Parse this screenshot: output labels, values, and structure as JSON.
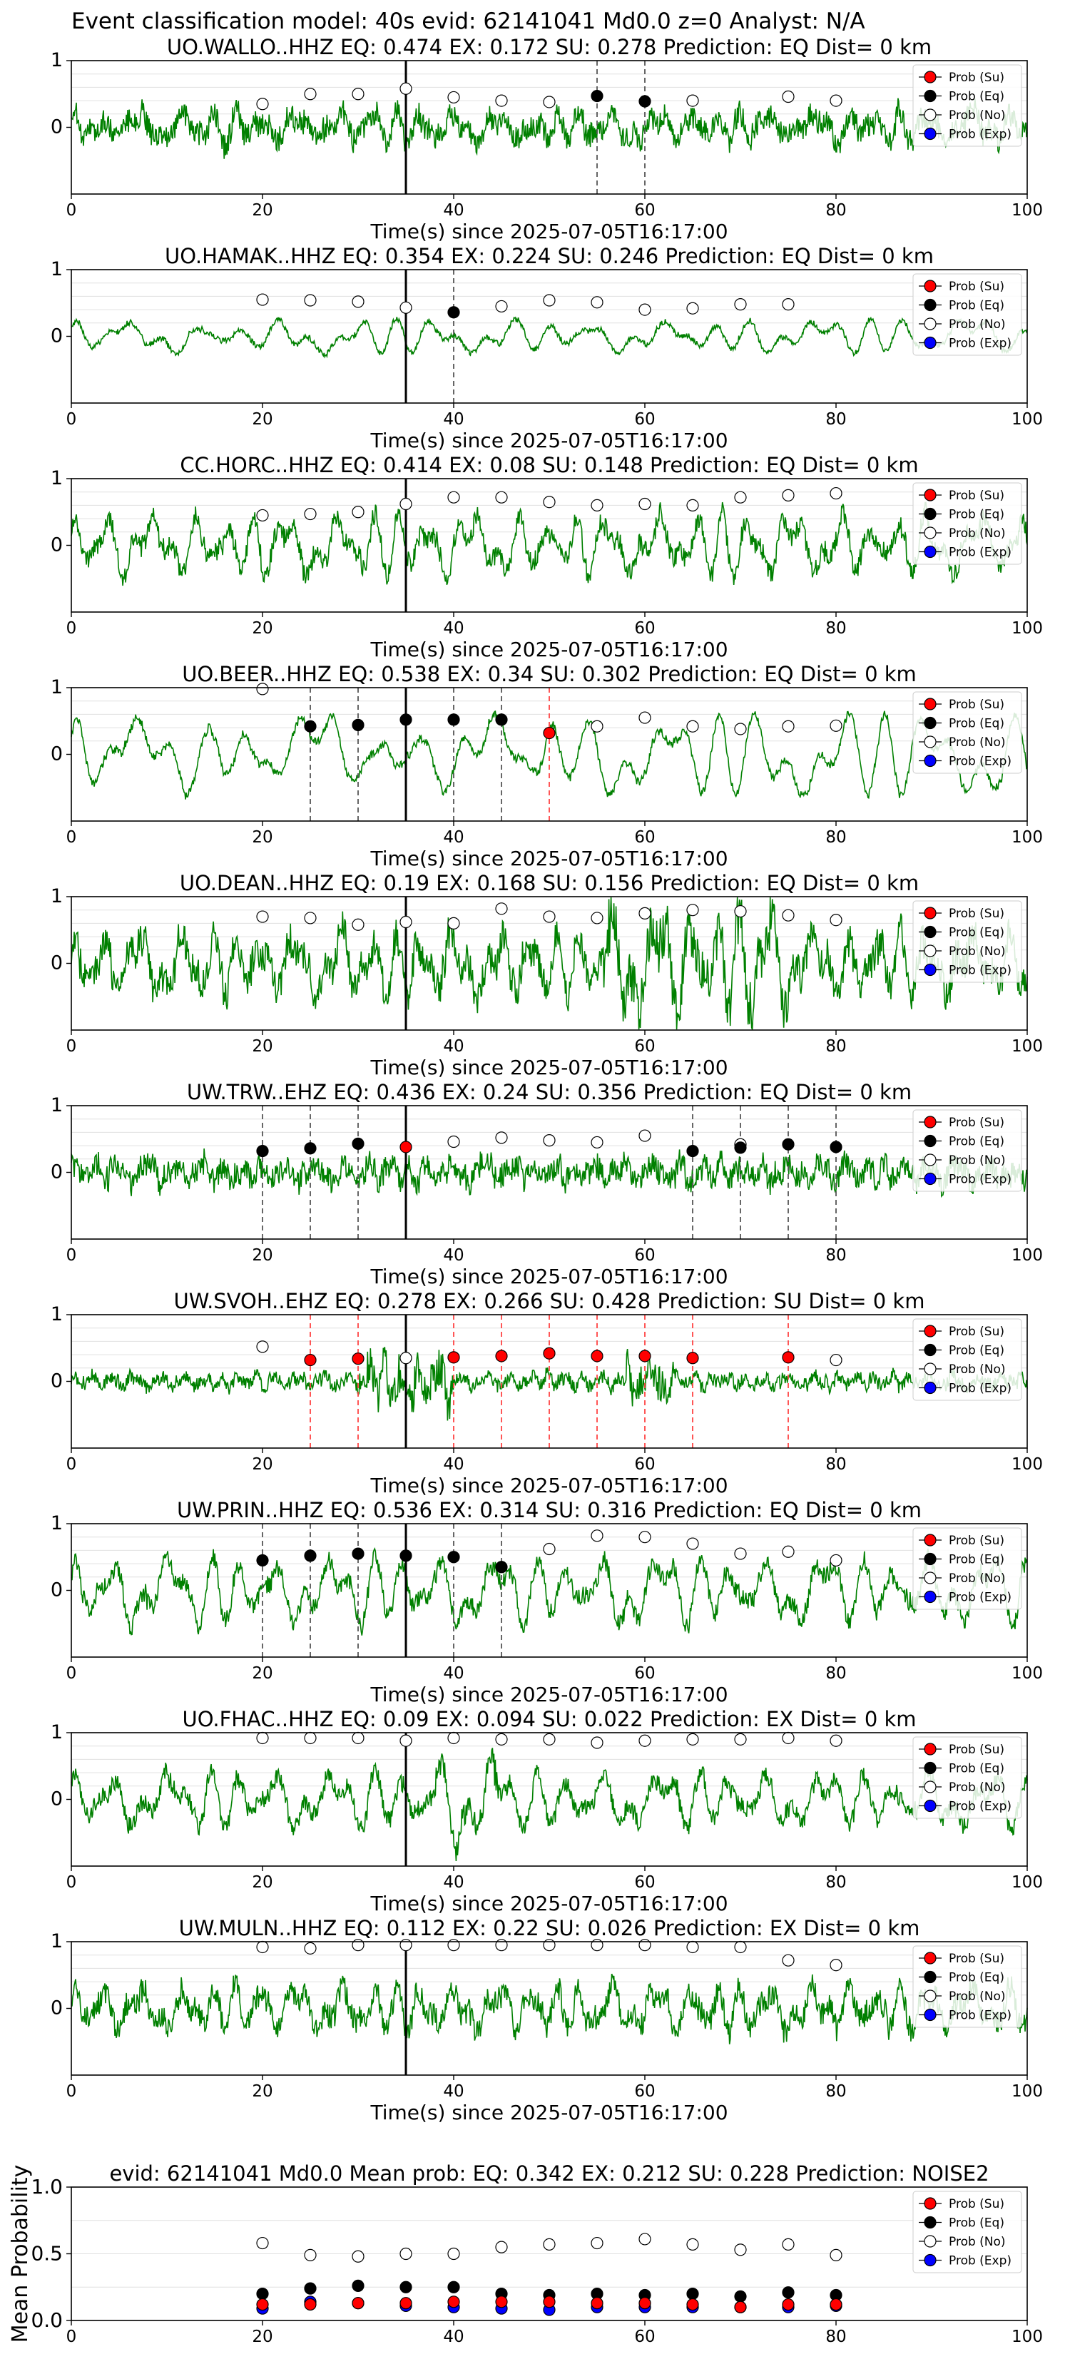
{
  "suptitle": "Event classification model: 40s evid: 62141041 Md0.0 z=0 Analyst: N/A",
  "legend": {
    "su": "Prob (Su)",
    "eq": "Prob (Eq)",
    "no": "Prob (No)",
    "exp": "Prob (Exp)"
  },
  "colors": {
    "waveform": "#008000",
    "su": "#ff0000",
    "eq": "#000000",
    "no": "#ffffff",
    "exp": "#0000ff"
  },
  "chart_data": [
    {
      "type": "line",
      "title": "UO.WALLO..HHZ   EQ: 0.474  EX: 0.172  SU: 0.278   Prediction: EQ    Dist= 0 km",
      "xlabel": "Time(s) since 2025-07-05T16:17:00",
      "xlim": [
        0,
        100
      ],
      "ylim": [
        -1,
        1
      ],
      "xticks": [
        "0",
        "20",
        "40",
        "60",
        "80",
        "100"
      ],
      "yticks": [
        "0",
        "1"
      ],
      "legend_position": "top-right",
      "arrival_s": 35,
      "noise": {
        "x": [
          20,
          25,
          30,
          35,
          40,
          45,
          50,
          65,
          75,
          80
        ],
        "y": [
          0.35,
          0.5,
          0.5,
          0.58,
          0.45,
          0.4,
          0.38,
          0.4,
          0.46,
          0.4
        ]
      },
      "eq": {
        "x": [
          55,
          60
        ],
        "y": [
          0.47,
          0.39
        ]
      },
      "su": {
        "x": [],
        "y": []
      },
      "eq_lines": [
        55,
        60
      ],
      "su_lines": []
    },
    {
      "type": "line",
      "title": "UO.HAMAK..HHZ   EQ: 0.354  EX: 0.224  SU: 0.246   Prediction: EQ    Dist= 0 km",
      "xlabel": "Time(s) since 2025-07-05T16:17:00",
      "xlim": [
        0,
        100
      ],
      "ylim": [
        -1,
        1
      ],
      "xticks": [
        "0",
        "20",
        "40",
        "60",
        "80",
        "100"
      ],
      "yticks": [
        "0",
        "1"
      ],
      "legend_position": "top-right",
      "arrival_s": 35,
      "noise": {
        "x": [
          20,
          25,
          30,
          35,
          45,
          50,
          55,
          60,
          65,
          70,
          75
        ],
        "y": [
          0.55,
          0.54,
          0.52,
          0.43,
          0.45,
          0.54,
          0.51,
          0.4,
          0.42,
          0.48,
          0.48
        ]
      },
      "eq": {
        "x": [
          40
        ],
        "y": [
          0.36
        ]
      },
      "su": {
        "x": [],
        "y": []
      },
      "eq_lines": [
        40
      ],
      "su_lines": []
    },
    {
      "type": "line",
      "title": "CC.HORC..HHZ   EQ: 0.414  EX: 0.08  SU: 0.148   Prediction: EQ    Dist= 0 km",
      "xlabel": "Time(s) since 2025-07-05T16:17:00",
      "xlim": [
        0,
        100
      ],
      "ylim": [
        -1,
        1
      ],
      "xticks": [
        "0",
        "20",
        "40",
        "60",
        "80",
        "100"
      ],
      "yticks": [
        "0",
        "1"
      ],
      "legend_position": "top-right",
      "arrival_s": 35,
      "noise": {
        "x": [
          20,
          25,
          30,
          35,
          40,
          45,
          50,
          55,
          60,
          65,
          70,
          75,
          80
        ],
        "y": [
          0.45,
          0.47,
          0.5,
          0.62,
          0.72,
          0.72,
          0.65,
          0.6,
          0.62,
          0.6,
          0.72,
          0.75,
          0.78
        ]
      },
      "eq": {
        "x": [],
        "y": []
      },
      "su": {
        "x": [],
        "y": []
      },
      "eq_lines": [],
      "su_lines": []
    },
    {
      "type": "line",
      "title": "UO.BEER..HHZ   EQ: 0.538  EX: 0.34  SU: 0.302   Prediction: EQ    Dist= 0 km",
      "xlabel": "Time(s) since 2025-07-05T16:17:00",
      "xlim": [
        0,
        100
      ],
      "ylim": [
        -1,
        1
      ],
      "xticks": [
        "0",
        "20",
        "40",
        "60",
        "80",
        "100"
      ],
      "yticks": [
        "0",
        "1"
      ],
      "legend_position": "top-right",
      "arrival_s": 35,
      "noise": {
        "x": [
          20,
          55,
          60,
          65,
          70,
          75,
          80
        ],
        "y": [
          0.98,
          0.42,
          0.55,
          0.42,
          0.38,
          0.42,
          0.43
        ]
      },
      "eq": {
        "x": [
          25,
          30,
          35,
          40,
          45
        ],
        "y": [
          0.42,
          0.44,
          0.52,
          0.52,
          0.52
        ]
      },
      "su": {
        "x": [
          50
        ],
        "y": [
          0.32
        ]
      },
      "eq_lines": [
        25,
        30,
        40,
        45
      ],
      "su_lines": [
        50
      ]
    },
    {
      "type": "line",
      "title": "UO.DEAN..HHZ   EQ: 0.19  EX: 0.168  SU: 0.156   Prediction: EQ    Dist= 0 km",
      "xlabel": "Time(s) since 2025-07-05T16:17:00",
      "xlim": [
        0,
        100
      ],
      "ylim": [
        -1,
        1
      ],
      "xticks": [
        "0",
        "20",
        "40",
        "60",
        "80",
        "100"
      ],
      "yticks": [
        "0",
        "1"
      ],
      "legend_position": "top-right",
      "arrival_s": 35,
      "noise": {
        "x": [
          20,
          25,
          30,
          35,
          40,
          45,
          50,
          55,
          60,
          65,
          70,
          75,
          80
        ],
        "y": [
          0.7,
          0.68,
          0.58,
          0.62,
          0.6,
          0.82,
          0.7,
          0.68,
          0.75,
          0.8,
          0.78,
          0.72,
          0.65
        ]
      },
      "eq": {
        "x": [],
        "y": []
      },
      "su": {
        "x": [],
        "y": []
      },
      "eq_lines": [],
      "su_lines": []
    },
    {
      "type": "line",
      "title": "UW.TRW..EHZ   EQ: 0.436  EX: 0.24  SU: 0.356   Prediction: EQ    Dist= 0 km",
      "xlabel": "Time(s) since 2025-07-05T16:17:00",
      "xlim": [
        0,
        100
      ],
      "ylim": [
        -1,
        1
      ],
      "xticks": [
        "0",
        "20",
        "40",
        "60",
        "80",
        "100"
      ],
      "yticks": [
        "0",
        "1"
      ],
      "legend_position": "top-right",
      "arrival_s": 35,
      "noise": {
        "x": [
          40,
          45,
          50,
          55,
          60,
          70
        ],
        "y": [
          0.46,
          0.52,
          0.48,
          0.45,
          0.55,
          0.42
        ]
      },
      "eq": {
        "x": [
          20,
          25,
          30,
          65,
          70,
          75,
          80
        ],
        "y": [
          0.32,
          0.36,
          0.43,
          0.32,
          0.37,
          0.42,
          0.38
        ]
      },
      "su": {
        "x": [
          35
        ],
        "y": [
          0.38
        ]
      },
      "eq_lines": [
        20,
        25,
        30,
        65,
        70,
        75,
        80
      ],
      "su_lines": []
    },
    {
      "type": "line",
      "title": "UW.SVOH..EHZ   EQ: 0.278  EX: 0.266  SU: 0.428   Prediction: SU    Dist= 0 km",
      "xlabel": "Time(s) since 2025-07-05T16:17:00",
      "xlim": [
        0,
        100
      ],
      "ylim": [
        -1,
        1
      ],
      "xticks": [
        "0",
        "20",
        "40",
        "60",
        "80",
        "100"
      ],
      "yticks": [
        "0",
        "1"
      ],
      "legend_position": "top-right",
      "arrival_s": 35,
      "noise": {
        "x": [
          20,
          35,
          80
        ],
        "y": [
          0.52,
          0.35,
          0.32
        ]
      },
      "eq": {
        "x": [],
        "y": []
      },
      "su": {
        "x": [
          25,
          30,
          40,
          45,
          50,
          55,
          60,
          65,
          75
        ],
        "y": [
          0.32,
          0.34,
          0.36,
          0.38,
          0.42,
          0.38,
          0.38,
          0.35,
          0.36
        ]
      },
      "eq_lines": [],
      "su_lines": [
        25,
        30,
        40,
        45,
        50,
        55,
        60,
        65,
        75
      ]
    },
    {
      "type": "line",
      "title": "UW.PRIN..HHZ   EQ: 0.536  EX: 0.314  SU: 0.316   Prediction: EQ    Dist= 0 km",
      "xlabel": "Time(s) since 2025-07-05T16:17:00",
      "xlim": [
        0,
        100
      ],
      "ylim": [
        -1,
        1
      ],
      "xticks": [
        "0",
        "20",
        "40",
        "60",
        "80",
        "100"
      ],
      "yticks": [
        "0",
        "1"
      ],
      "legend_position": "top-right",
      "arrival_s": 35,
      "noise": {
        "x": [
          50,
          55,
          60,
          65,
          70,
          75,
          80
        ],
        "y": [
          0.62,
          0.82,
          0.8,
          0.7,
          0.55,
          0.58,
          0.45
        ]
      },
      "eq": {
        "x": [
          20,
          25,
          30,
          35,
          40,
          45
        ],
        "y": [
          0.45,
          0.52,
          0.55,
          0.52,
          0.5,
          0.35
        ]
      },
      "su": {
        "x": [],
        "y": []
      },
      "eq_lines": [
        20,
        25,
        30,
        40,
        45
      ],
      "su_lines": []
    },
    {
      "type": "line",
      "title": "UO.FHAC..HHZ   EQ: 0.09  EX: 0.094  SU: 0.022   Prediction: EX    Dist= 0 km",
      "xlabel": "Time(s) since 2025-07-05T16:17:00",
      "xlim": [
        0,
        100
      ],
      "ylim": [
        -1,
        1
      ],
      "xticks": [
        "0",
        "20",
        "40",
        "60",
        "80",
        "100"
      ],
      "yticks": [
        "0",
        "1"
      ],
      "legend_position": "top-right",
      "arrival_s": 35,
      "noise": {
        "x": [
          20,
          25,
          30,
          35,
          40,
          45,
          50,
          55,
          60,
          65,
          70,
          75,
          80
        ],
        "y": [
          0.92,
          0.92,
          0.92,
          0.88,
          0.92,
          0.9,
          0.9,
          0.85,
          0.88,
          0.9,
          0.9,
          0.92,
          0.88
        ]
      },
      "eq": {
        "x": [],
        "y": []
      },
      "su": {
        "x": [],
        "y": []
      },
      "eq_lines": [],
      "su_lines": []
    },
    {
      "type": "line",
      "title": "UW.MULN..HHZ   EQ: 0.112  EX: 0.22  SU: 0.026   Prediction: EX    Dist= 0 km",
      "xlabel": "Time(s) since 2025-07-05T16:17:00",
      "xlim": [
        0,
        100
      ],
      "ylim": [
        -1,
        1
      ],
      "xticks": [
        "0",
        "20",
        "40",
        "60",
        "80",
        "100"
      ],
      "yticks": [
        "0",
        "1"
      ],
      "legend_position": "top-right",
      "arrival_s": 35,
      "noise": {
        "x": [
          20,
          25,
          30,
          35,
          40,
          45,
          50,
          55,
          60,
          65,
          70,
          75,
          80
        ],
        "y": [
          0.92,
          0.9,
          0.95,
          0.95,
          0.95,
          0.95,
          0.95,
          0.95,
          0.95,
          0.92,
          0.92,
          0.72,
          0.65
        ]
      },
      "eq": {
        "x": [],
        "y": []
      },
      "su": {
        "x": [],
        "y": []
      },
      "eq_lines": [],
      "su_lines": []
    },
    {
      "type": "scatter",
      "title": "evid: 62141041  Md0.0   Mean prob:   EQ: 0.342  EX: 0.212  SU: 0.228   Prediction: NOISE2",
      "ylabel": "Mean Probability",
      "xlim": [
        0,
        100
      ],
      "ylim": [
        0,
        1
      ],
      "xticks": [
        "0",
        "20",
        "40",
        "60",
        "80",
        "100"
      ],
      "yticks": [
        "0.0",
        "0.5",
        "1.0"
      ],
      "legend_position": "top-right",
      "x": [
        20,
        25,
        30,
        35,
        40,
        45,
        50,
        55,
        60,
        65,
        70,
        75,
        80
      ],
      "series": [
        {
          "name": "Prob (No)",
          "values": [
            0.58,
            0.49,
            0.48,
            0.5,
            0.5,
            0.55,
            0.57,
            0.58,
            0.61,
            0.57,
            0.53,
            0.57,
            0.49
          ]
        },
        {
          "name": "Prob (Eq)",
          "values": [
            0.2,
            0.24,
            0.26,
            0.25,
            0.25,
            0.2,
            0.19,
            0.2,
            0.19,
            0.2,
            0.18,
            0.21,
            0.19
          ]
        },
        {
          "name": "Prob (Su)",
          "values": [
            0.12,
            0.12,
            0.13,
            0.13,
            0.14,
            0.14,
            0.14,
            0.13,
            0.13,
            0.12,
            0.1,
            0.12,
            0.12
          ]
        },
        {
          "name": "Prob (Exp)",
          "values": [
            0.09,
            0.14,
            0.13,
            0.11,
            0.1,
            0.09,
            0.08,
            0.1,
            0.1,
            0.1,
            0.1,
            0.1,
            0.11
          ]
        }
      ]
    }
  ]
}
